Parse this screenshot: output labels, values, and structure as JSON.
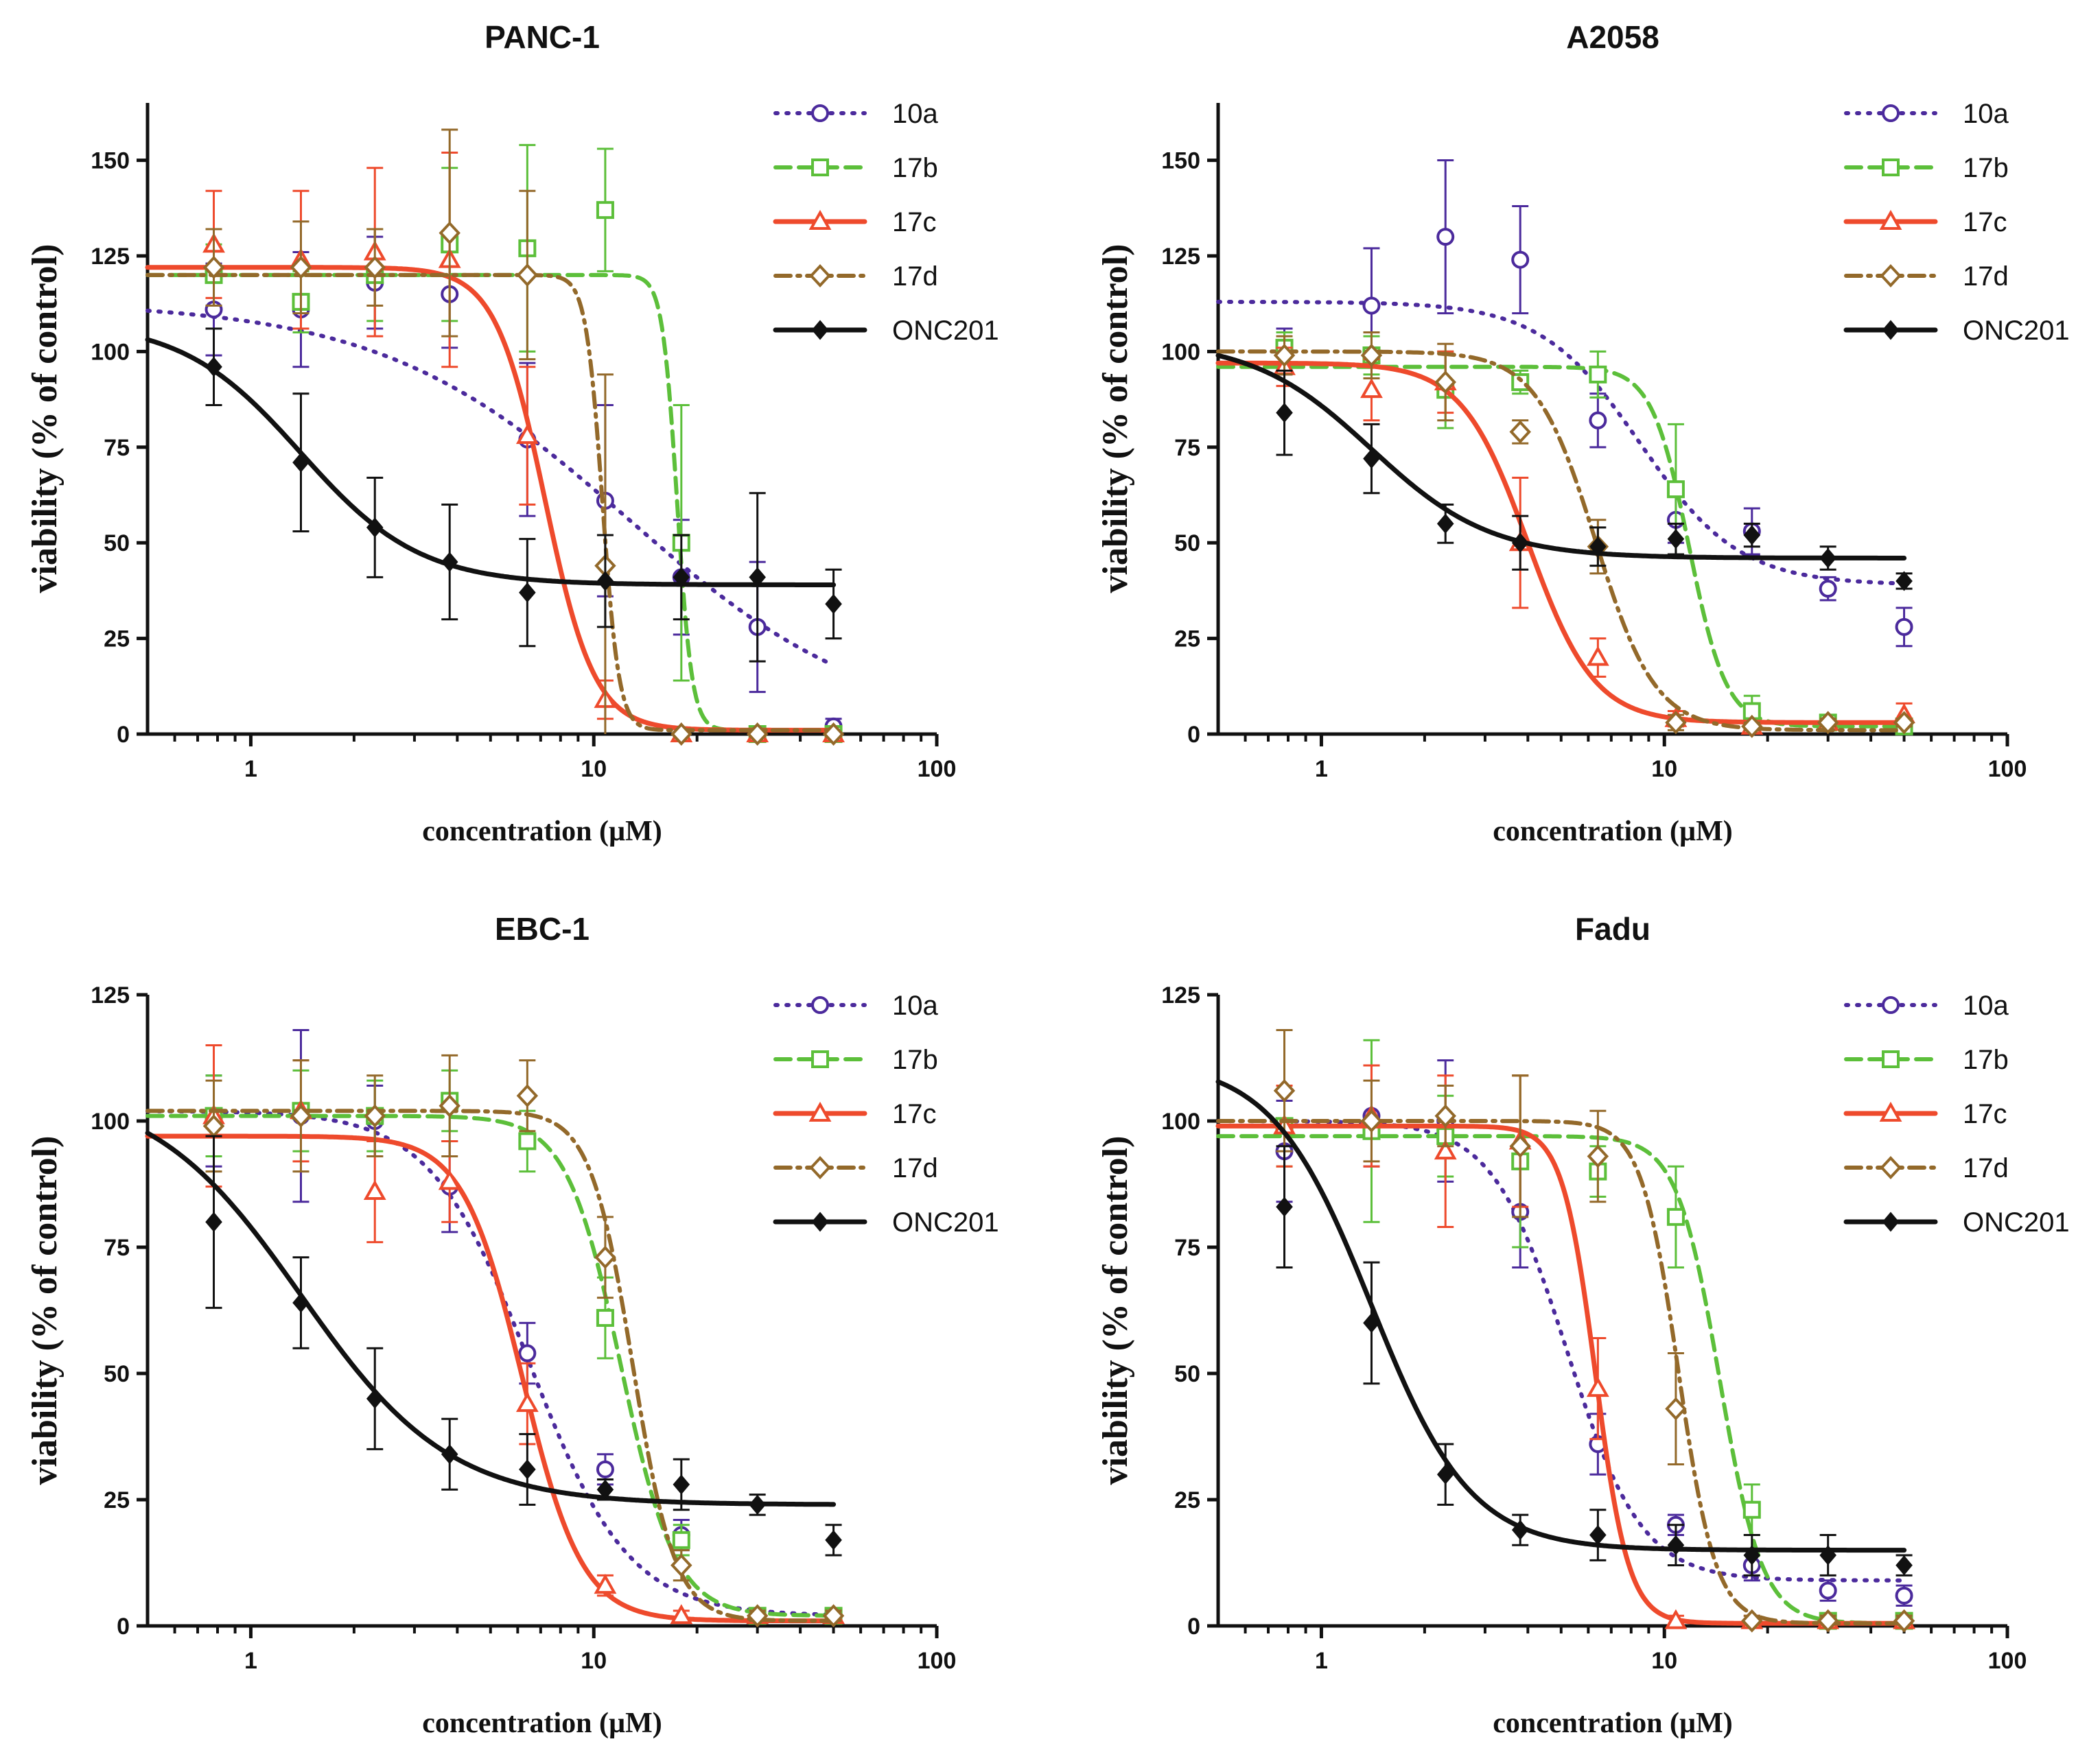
{
  "series_styles": [
    {
      "name": "10a",
      "color": "#4b2a9c",
      "marker": "circle-open",
      "line": "dotted"
    },
    {
      "name": "17b",
      "color": "#5cbf3a",
      "marker": "square-open",
      "line": "dashed"
    },
    {
      "name": "17c",
      "color": "#ee4a2c",
      "marker": "triangle-open",
      "line": "solid"
    },
    {
      "name": "17d",
      "color": "#93692a",
      "marker": "diamond-open",
      "line": "dashdot"
    },
    {
      "name": "ONC201",
      "color": "#111111",
      "marker": "diamond-filled",
      "line": "solid"
    }
  ],
  "chart_data": [
    {
      "type": "scatter",
      "title": "PANC-1",
      "xlabel": "concentration (µM)",
      "ylabel": "viability (% of control)",
      "xscale": "log",
      "xlim": [
        0.5,
        100
      ],
      "ylim": [
        0,
        165
      ],
      "xticks": [
        1,
        10,
        100
      ],
      "yticks": [
        0,
        25,
        50,
        75,
        100,
        125,
        150
      ],
      "legend": "top-right",
      "series": [
        {
          "name": "10a",
          "x": [
            0.78,
            1.4,
            2.3,
            3.8,
            6.4,
            10.8,
            18,
            30,
            50
          ],
          "y": [
            111,
            111,
            118,
            115,
            77,
            61,
            41,
            28,
            2
          ],
          "err": [
            12,
            15,
            12,
            14,
            20,
            25,
            15,
            17,
            2
          ],
          "fit": {
            "top": 113,
            "bottom": 0,
            "ec50": 12.5,
            "hill": 1.2
          }
        },
        {
          "name": "17b",
          "x": [
            0.78,
            1.4,
            2.3,
            3.8,
            6.4,
            10.8,
            18,
            30,
            50
          ],
          "y": [
            120,
            113,
            120,
            128,
            127,
            137,
            50,
            0,
            0
          ],
          "err": [
            8,
            8,
            12,
            20,
            27,
            16,
            36,
            0,
            0
          ],
          "fit": {
            "top": 120,
            "bottom": 1,
            "ec50": 17.5,
            "hill": 20
          }
        },
        {
          "name": "17c",
          "x": [
            0.78,
            1.4,
            2.3,
            3.8,
            6.4,
            10.8,
            18,
            30,
            50
          ],
          "y": [
            128,
            124,
            126,
            124,
            78,
            9,
            0,
            0,
            0
          ],
          "err": [
            14,
            18,
            22,
            28,
            18,
            5,
            0,
            0,
            0
          ],
          "fit": {
            "top": 122,
            "bottom": 1,
            "ec50": 7.2,
            "hill": 6
          }
        },
        {
          "name": "17d",
          "x": [
            0.78,
            1.4,
            2.3,
            3.8,
            6.4,
            10.8,
            18,
            30,
            50
          ],
          "y": [
            122,
            122,
            122,
            131,
            120,
            44,
            0,
            0,
            0
          ],
          "err": [
            10,
            12,
            10,
            27,
            22,
            50,
            0,
            0,
            0
          ],
          "fit": {
            "top": 120,
            "bottom": 1,
            "ec50": 10.6,
            "hill": 18
          }
        },
        {
          "name": "ONC201",
          "x": [
            0.78,
            1.4,
            2.3,
            3.8,
            6.4,
            10.8,
            18,
            30,
            50
          ],
          "y": [
            96,
            71,
            54,
            45,
            37,
            40,
            41,
            41,
            34
          ],
          "err": [
            10,
            18,
            13,
            15,
            14,
            12,
            11,
            22,
            9
          ],
          "fit": {
            "top": 108,
            "bottom": 39,
            "ec50": 1.4,
            "hill": 2.5
          }
        }
      ]
    },
    {
      "type": "scatter",
      "title": "A2058",
      "xlabel": "concentration (µM)",
      "ylabel": "viability (% of control)",
      "xscale": "log",
      "xlim": [
        0.5,
        100
      ],
      "ylim": [
        0,
        165
      ],
      "xticks": [
        1,
        10,
        100
      ],
      "yticks": [
        0,
        25,
        50,
        75,
        100,
        125,
        150
      ],
      "legend": "top-right",
      "series": [
        {
          "name": "10a",
          "x": [
            0.78,
            1.4,
            2.3,
            3.8,
            6.4,
            10.8,
            18,
            30,
            50
          ],
          "y": [
            100,
            112,
            130,
            124,
            82,
            56,
            53,
            38,
            28
          ],
          "err": [
            6,
            15,
            20,
            14,
            7,
            6,
            6,
            3,
            5
          ],
          "fit": {
            "top": 113,
            "bottom": 39,
            "ec50": 8.5,
            "hill": 3
          }
        },
        {
          "name": "17b",
          "x": [
            0.78,
            1.4,
            2.3,
            3.8,
            6.4,
            10.8,
            18,
            30,
            50
          ],
          "y": [
            101,
            99,
            90,
            92,
            94,
            64,
            6,
            3,
            2
          ],
          "err": [
            4,
            5,
            10,
            3,
            6,
            17,
            4,
            2,
            1
          ],
          "fit": {
            "top": 96,
            "bottom": 2,
            "ec50": 11.8,
            "hill": 8
          }
        },
        {
          "name": "17c",
          "x": [
            0.78,
            1.4,
            2.3,
            3.8,
            6.4,
            10.8,
            18,
            30,
            50
          ],
          "y": [
            96,
            90,
            92,
            50,
            20,
            4,
            2,
            3,
            5
          ],
          "err": [
            5,
            8,
            8,
            17,
            5,
            2,
            1,
            1,
            3
          ],
          "fit": {
            "top": 97,
            "bottom": 3,
            "ec50": 4.0,
            "hill": 4.5
          }
        },
        {
          "name": "17d",
          "x": [
            0.78,
            1.4,
            2.3,
            3.8,
            6.4,
            10.8,
            18,
            30,
            50
          ],
          "y": [
            99,
            99,
            92,
            79,
            49,
            3,
            2,
            3,
            3
          ],
          "err": [
            5,
            6,
            10,
            3,
            7,
            2,
            1,
            1,
            1
          ],
          "fit": {
            "top": 100,
            "bottom": 1,
            "ec50": 6.3,
            "hill": 5
          }
        },
        {
          "name": "ONC201",
          "x": [
            0.78,
            1.4,
            2.3,
            3.8,
            6.4,
            10.8,
            18,
            30,
            50
          ],
          "y": [
            84,
            72,
            55,
            50,
            49,
            51,
            52,
            46,
            40
          ],
          "err": [
            11,
            9,
            5,
            7,
            5,
            4,
            3,
            3,
            2
          ],
          "fit": {
            "top": 103,
            "bottom": 46,
            "ec50": 1.4,
            "hill": 2.5
          }
        }
      ]
    },
    {
      "type": "scatter",
      "title": "EBC-1",
      "xlabel": "concentration (µM)",
      "ylabel": "viability (% of control)",
      "xscale": "log",
      "xlim": [
        0.5,
        100
      ],
      "ylim": [
        0,
        125
      ],
      "xticks": [
        1,
        10,
        100
      ],
      "yticks": [
        0,
        25,
        50,
        75,
        100,
        125
      ],
      "legend": "top-right",
      "series": [
        {
          "name": "10a",
          "x": [
            0.78,
            1.4,
            2.3,
            3.8,
            6.4,
            10.8,
            18,
            30,
            50
          ],
          "y": [
            100,
            101,
            100,
            87,
            54,
            31,
            18,
            2,
            2
          ],
          "err": [
            9,
            17,
            7,
            9,
            6,
            3,
            3,
            1,
            1
          ],
          "fit": {
            "top": 102,
            "bottom": 2,
            "ec50": 6.5,
            "hill": 3
          }
        },
        {
          "name": "17b",
          "x": [
            0.78,
            1.4,
            2.3,
            3.8,
            6.4,
            10.8,
            18,
            30,
            50
          ],
          "y": [
            101,
            102,
            101,
            104,
            96,
            61,
            17,
            2,
            2
          ],
          "err": [
            8,
            8,
            7,
            6,
            6,
            8,
            3,
            1,
            1
          ],
          "fit": {
            "top": 101,
            "bottom": 2,
            "ec50": 12.0,
            "hill": 5.5
          }
        },
        {
          "name": "17c",
          "x": [
            0.78,
            1.4,
            2.3,
            3.8,
            6.4,
            10.8,
            18,
            30,
            50
          ],
          "y": [
            101,
            102,
            86,
            88,
            44,
            8,
            2,
            2,
            2
          ],
          "err": [
            14,
            10,
            10,
            8,
            8,
            2,
            1,
            1,
            1
          ],
          "fit": {
            "top": 97,
            "bottom": 1,
            "ec50": 6.2,
            "hill": 5
          }
        },
        {
          "name": "17d",
          "x": [
            0.78,
            1.4,
            2.3,
            3.8,
            6.4,
            10.8,
            18,
            30,
            50
          ],
          "y": [
            99,
            101,
            101,
            103,
            105,
            73,
            12,
            2,
            2
          ],
          "err": [
            9,
            11,
            8,
            10,
            7,
            8,
            3,
            1,
            1
          ],
          "fit": {
            "top": 102,
            "bottom": 1,
            "ec50": 13.0,
            "hill": 7
          }
        },
        {
          "name": "ONC201",
          "x": [
            0.78,
            1.4,
            2.3,
            3.8,
            6.4,
            10.8,
            18,
            30,
            50
          ],
          "y": [
            80,
            64,
            45,
            34,
            31,
            27,
            28,
            24,
            17
          ],
          "err": [
            17,
            9,
            10,
            7,
            7,
            2,
            5,
            2,
            3
          ],
          "fit": {
            "top": 107,
            "bottom": 24,
            "ec50": 1.4,
            "hill": 2
          }
        }
      ]
    },
    {
      "type": "scatter",
      "title": "Fadu",
      "xlabel": "concentration (µM)",
      "ylabel": "viability (% of control)",
      "xscale": "log",
      "xlim": [
        0.5,
        100
      ],
      "ylim": [
        0,
        125
      ],
      "xticks": [
        1,
        10,
        100
      ],
      "yticks": [
        0,
        25,
        50,
        75,
        100,
        125
      ],
      "legend": "top-right",
      "series": [
        {
          "name": "10a",
          "x": [
            0.78,
            1.4,
            2.3,
            3.8,
            6.4,
            10.8,
            18,
            30,
            50
          ],
          "y": [
            94,
            101,
            100,
            82,
            36,
            20,
            12,
            7,
            6
          ],
          "err": [
            10,
            10,
            12,
            11,
            6,
            2,
            3,
            2,
            2
          ],
          "fit": {
            "top": 100,
            "bottom": 9,
            "ec50": 5.2,
            "hill": 4
          }
        },
        {
          "name": "17b",
          "x": [
            0.78,
            1.4,
            2.3,
            3.8,
            6.4,
            10.8,
            18,
            30,
            50
          ],
          "y": [
            99,
            98,
            97,
            92,
            90,
            81,
            23,
            1,
            1
          ],
          "err": [
            8,
            18,
            8,
            17,
            5,
            10,
            5,
            1,
            1
          ],
          "fit": {
            "top": 97,
            "bottom": 0.5,
            "ec50": 14.5,
            "hill": 7
          }
        },
        {
          "name": "17c",
          "x": [
            0.78,
            1.4,
            2.3,
            3.8,
            6.4,
            10.8,
            18,
            30,
            50
          ],
          "y": [
            99,
            101,
            94,
            96,
            47,
            1,
            1,
            1,
            1
          ],
          "err": [
            8,
            10,
            15,
            13,
            10,
            1,
            1,
            1,
            1
          ],
          "fit": {
            "top": 99,
            "bottom": 0.5,
            "ec50": 6.3,
            "hill": 9
          }
        },
        {
          "name": "17d",
          "x": [
            0.78,
            1.4,
            2.3,
            3.8,
            6.4,
            10.8,
            18,
            30,
            50
          ],
          "y": [
            106,
            100,
            101,
            95,
            93,
            43,
            1,
            1,
            1
          ],
          "err": [
            12,
            8,
            6,
            14,
            9,
            11,
            1,
            1,
            1
          ],
          "fit": {
            "top": 100,
            "bottom": 0.5,
            "ec50": 11.0,
            "hill": 8
          }
        },
        {
          "name": "ONC201",
          "x": [
            0.78,
            1.4,
            2.3,
            3.8,
            6.4,
            10.8,
            18,
            30,
            50
          ],
          "y": [
            83,
            60,
            30,
            19,
            18,
            16,
            14,
            14,
            12
          ],
          "err": [
            12,
            12,
            6,
            3,
            5,
            4,
            4,
            4,
            2
          ],
          "fit": {
            "top": 112,
            "bottom": 15,
            "ec50": 1.4,
            "hill": 3
          }
        }
      ]
    }
  ]
}
